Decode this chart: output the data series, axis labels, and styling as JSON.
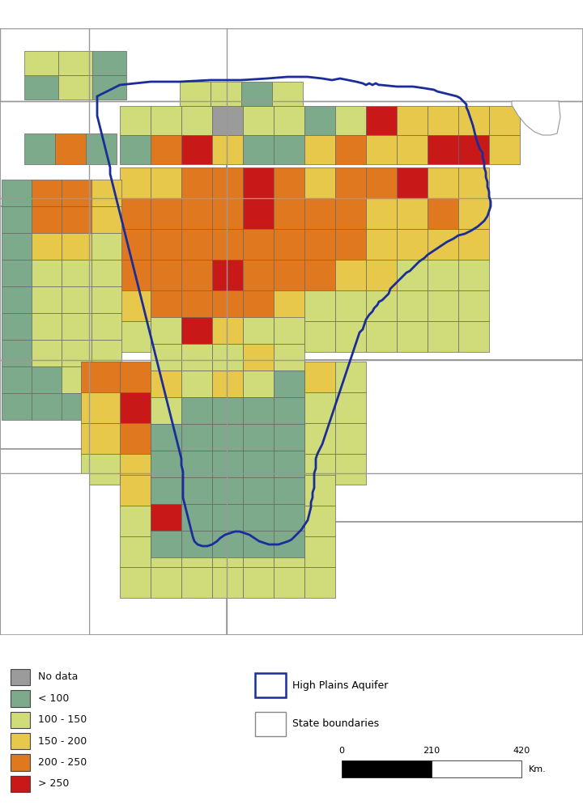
{
  "colors": {
    "no_data": "#9B9B9B",
    "lt100": "#7DAA8A",
    "r100_150": "#D0DC7A",
    "r150_200": "#E8C84A",
    "r200_250": "#E07820",
    "gt250": "#C81818",
    "aquifer_border": "#1A2D99",
    "state_border": "#888888",
    "county_border": "#666666",
    "background": "#FFFFFF"
  },
  "legend_items": [
    {
      "label": "No data",
      "color": "#9B9B9B"
    },
    {
      "label": "< 100",
      "color": "#7DAA8A"
    },
    {
      "label": "100 - 150",
      "color": "#D0DC7A"
    },
    {
      "label": "150 - 200",
      "color": "#E8C84A"
    },
    {
      "label": "200 - 250",
      "color": "#E07820"
    },
    {
      "label": "> 250",
      "color": "#C81818"
    }
  ],
  "scale_labels": [
    "0",
    "210",
    "420"
  ],
  "scale_unit": "Km.",
  "fig_width": 7.2,
  "fig_height": 10.0
}
